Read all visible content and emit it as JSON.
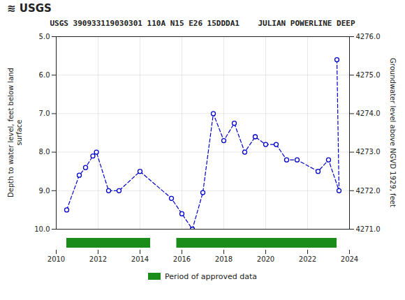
{
  "chart_data": {
    "type": "line",
    "title": "USGS 390933119030301 110A N15 E26 15DDDA1    JULIAN POWERLINE DEEP",
    "annotations": [
      "≋",
      "USGS"
    ],
    "ylabel": "Depth to water level, feet below land\nsurface",
    "y2label": "Groundwater level above NGVD 1929, feet",
    "x": [
      2010.5,
      2011.1,
      2011.4,
      2011.75,
      2011.92,
      2012.5,
      2013.0,
      2014.0,
      2015.5,
      2016.0,
      2016.5,
      2017.0,
      2017.5,
      2018.0,
      2018.5,
      2019.0,
      2019.5,
      2020.0,
      2020.5,
      2021.0,
      2021.5,
      2022.5,
      2023.0,
      2023.5,
      2023.4
    ],
    "series": [
      {
        "values": [
          9.5,
          8.6,
          8.4,
          8.1,
          8.0,
          9.0,
          9.0,
          8.5,
          9.2,
          9.6,
          10.0,
          9.05,
          7.0,
          7.7,
          7.25,
          8.0,
          7.6,
          7.8,
          7.8,
          8.2,
          8.2,
          8.5,
          8.2,
          9.0,
          5.6
        ],
        "color": "#0000CC",
        "marker": "o",
        "line_style": "dashed"
      }
    ],
    "xlim": [
      2010,
      2024
    ],
    "xticks": [
      2010,
      2012,
      2014,
      2016,
      2018,
      2020,
      2022,
      2024
    ],
    "ylim": [
      10.0,
      5.0
    ],
    "yticks": [
      {
        "value": 5.0,
        "label": "5.0"
      },
      {
        "value": 6.0,
        "label": "6.0"
      },
      {
        "value": 7.0,
        "label": "7.0"
      },
      {
        "value": 8.0,
        "label": "8.0"
      },
      {
        "value": 9.0,
        "label": "9.0"
      },
      {
        "value": 10.0,
        "label": "10.0"
      }
    ],
    "y2lim": [
      4271.0,
      4276.0
    ],
    "y2ticks": [
      {
        "value": 4271.0,
        "label": "4271.0"
      },
      {
        "value": 4272.0,
        "label": "4272.0"
      },
      {
        "value": 4273.0,
        "label": "4273.0"
      },
      {
        "value": 4274.0,
        "label": "4274.0"
      },
      {
        "value": 4275.0,
        "label": "4275.0"
      },
      {
        "value": 4276.0,
        "label": "4276.0"
      }
    ],
    "grid": true,
    "approved_periods": {
      "name": "Period of approved data",
      "color": "#1a8c1a",
      "ranges": [
        [
          2010.5,
          2014.5
        ],
        [
          2015.75,
          2023.4
        ]
      ]
    },
    "legend": "bottom"
  }
}
